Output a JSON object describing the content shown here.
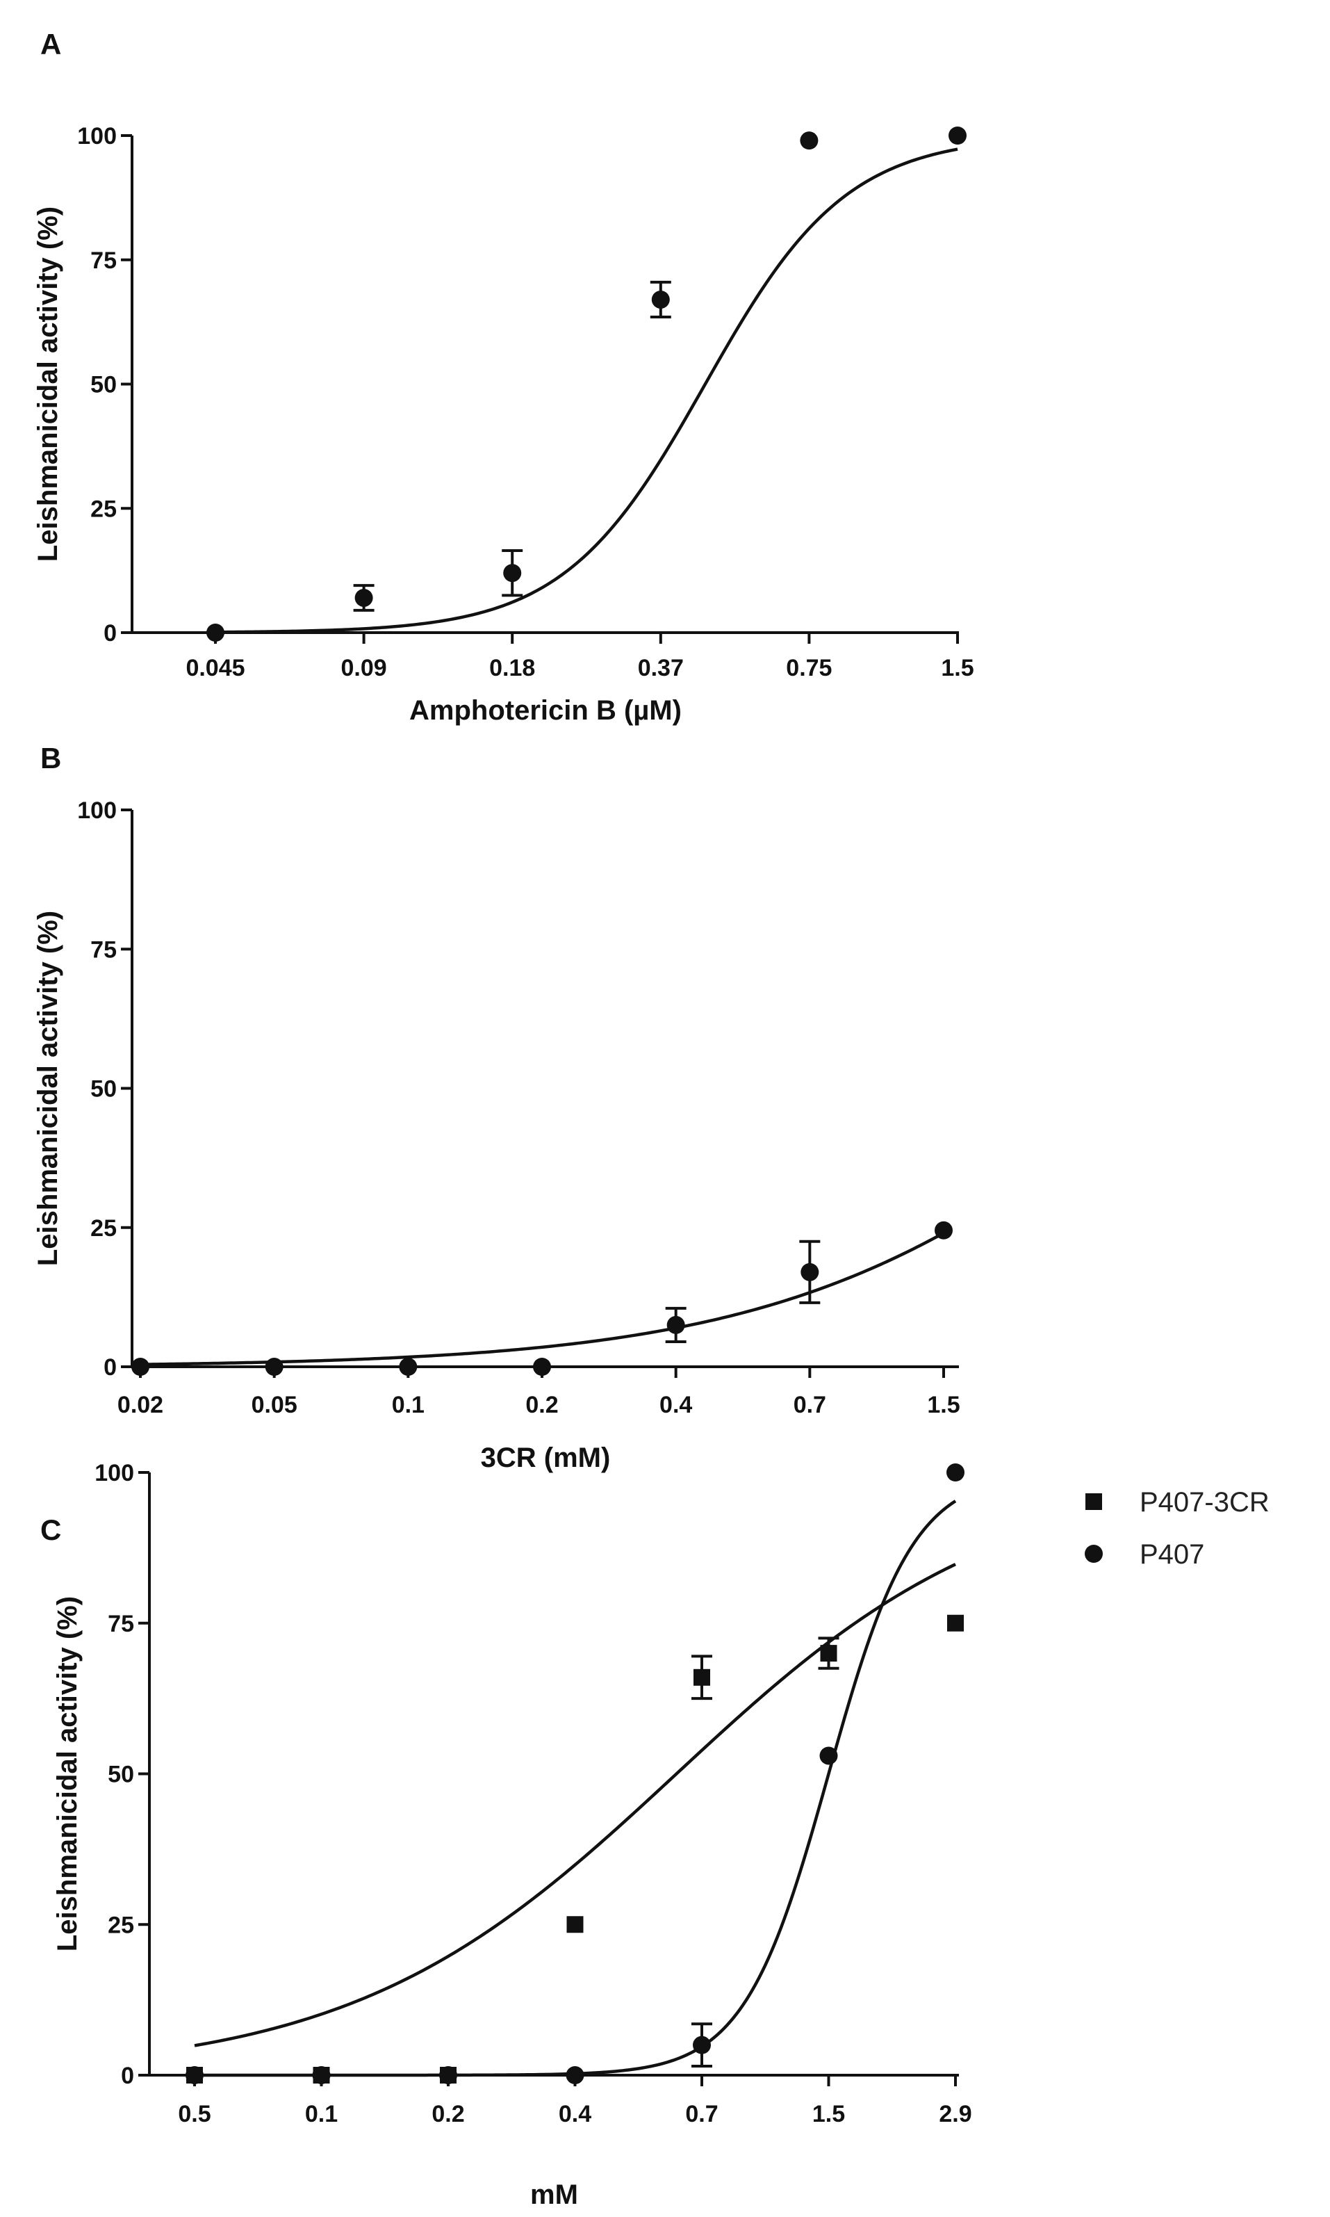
{
  "figure": {
    "description_free": true
  },
  "chart_data": [
    {
      "panel": "A",
      "type": "scatter",
      "xlabel": "Amphotericin B (µM)",
      "ylabel": "Leishmanicidal activity (%)",
      "categories": [
        "0.045",
        "0.09",
        "0.18",
        "0.37",
        "0.75",
        "1.5"
      ],
      "ylim": [
        0,
        100
      ],
      "yticks": [
        "0",
        "25",
        "50",
        "75",
        "100"
      ],
      "series": [
        {
          "name": "Amphotericin B",
          "marker": "circle",
          "values": [
            0,
            7,
            12,
            67,
            99,
            100
          ],
          "errors": [
            0,
            2.5,
            4.5,
            3.5,
            0,
            0
          ],
          "fit": {
            "bottom": 0,
            "top": 100,
            "center": 3.3,
            "slope": 2.1
          }
        }
      ]
    },
    {
      "panel": "B",
      "type": "scatter",
      "xlabel": "3CR (mM)",
      "ylabel": "Leishmanicidal activity (%)",
      "categories": [
        "0.02",
        "0.05",
        "0.1",
        "0.2",
        "0.4",
        "0.7",
        "1.5"
      ],
      "ylim": [
        0,
        100
      ],
      "yticks": [
        "0",
        "25",
        "50",
        "75",
        "100"
      ],
      "series": [
        {
          "name": "3CR",
          "marker": "circle",
          "values": [
            0,
            0,
            0,
            0,
            7.5,
            17,
            24.5
          ],
          "errors": [
            0,
            0,
            0,
            0,
            3,
            5.5,
            0
          ],
          "fit": {
            "bottom": 0,
            "top": 100,
            "center": 7.6,
            "slope": 0.72
          }
        }
      ]
    },
    {
      "panel": "C",
      "type": "scatter",
      "xlabel": "mM",
      "ylabel": "Leishmanicidal activity (%)",
      "categories": [
        "0.5",
        "0.1",
        "0.2",
        "0.4",
        "0.7",
        "1.5",
        "2.9"
      ],
      "ylim": [
        0,
        100
      ],
      "yticks": [
        "0",
        "25",
        "50",
        "75",
        "100"
      ],
      "legend_position": "right",
      "series": [
        {
          "name": "P407-3CR",
          "marker": "square",
          "values": [
            0,
            0,
            0,
            25,
            66,
            70,
            75
          ],
          "errors": [
            0,
            0,
            0,
            0,
            3.5,
            2.5,
            0
          ],
          "fit": {
            "bottom": 0,
            "top": 100,
            "center": 3.8,
            "slope": 0.78
          }
        },
        {
          "name": "P407",
          "marker": "circle",
          "values": [
            0,
            0,
            0,
            0,
            5,
            53,
            100
          ],
          "errors": [
            0,
            0,
            0,
            0,
            3.5,
            0,
            0
          ],
          "fit": {
            "bottom": 0,
            "top": 100,
            "center": 5.0,
            "slope": 3.0
          }
        }
      ]
    }
  ]
}
